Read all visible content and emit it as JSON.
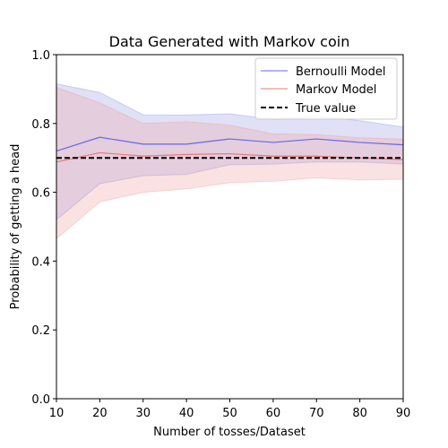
{
  "chart_data": {
    "type": "line",
    "title": "Data Generated with Markov coin",
    "xlabel": "Number of tosses/Dataset",
    "ylabel": "Probability of getting a head",
    "xlim": [
      10,
      90
    ],
    "ylim": [
      0.0,
      1.0
    ],
    "xticks": [
      "10",
      "20",
      "30",
      "40",
      "50",
      "60",
      "70",
      "80",
      "90"
    ],
    "yticks": [
      "0.0",
      "0.2",
      "0.4",
      "0.6",
      "0.8",
      "1.0"
    ],
    "grid": false,
    "legend_position": "top-right",
    "x": [
      10,
      20,
      30,
      40,
      50,
      60,
      70,
      80,
      90
    ],
    "series": [
      {
        "name": "Bernoulli Model",
        "color": "#6666ee",
        "band_color": "#8e95e0",
        "values": [
          0.72,
          0.76,
          0.74,
          0.74,
          0.755,
          0.745,
          0.755,
          0.745,
          0.738
        ],
        "upper": [
          0.915,
          0.89,
          0.825,
          0.825,
          0.828,
          0.812,
          0.822,
          0.808,
          0.79
        ],
        "lower": [
          0.52,
          0.625,
          0.648,
          0.652,
          0.68,
          0.682,
          0.688,
          0.688,
          0.682
        ]
      },
      {
        "name": "Markov Model",
        "color": "#ee7777",
        "band_color": "#f0a0a0",
        "values": [
          0.688,
          0.715,
          0.705,
          0.71,
          0.712,
          0.705,
          0.705,
          0.7,
          0.695
        ],
        "upper": [
          0.905,
          0.86,
          0.8,
          0.805,
          0.795,
          0.77,
          0.768,
          0.758,
          0.755
        ],
        "lower": [
          0.465,
          0.572,
          0.6,
          0.61,
          0.628,
          0.632,
          0.642,
          0.636,
          0.638
        ]
      }
    ],
    "reference_line": {
      "name": "True value",
      "value": 0.7,
      "color": "#000000",
      "style": "dashed"
    }
  }
}
